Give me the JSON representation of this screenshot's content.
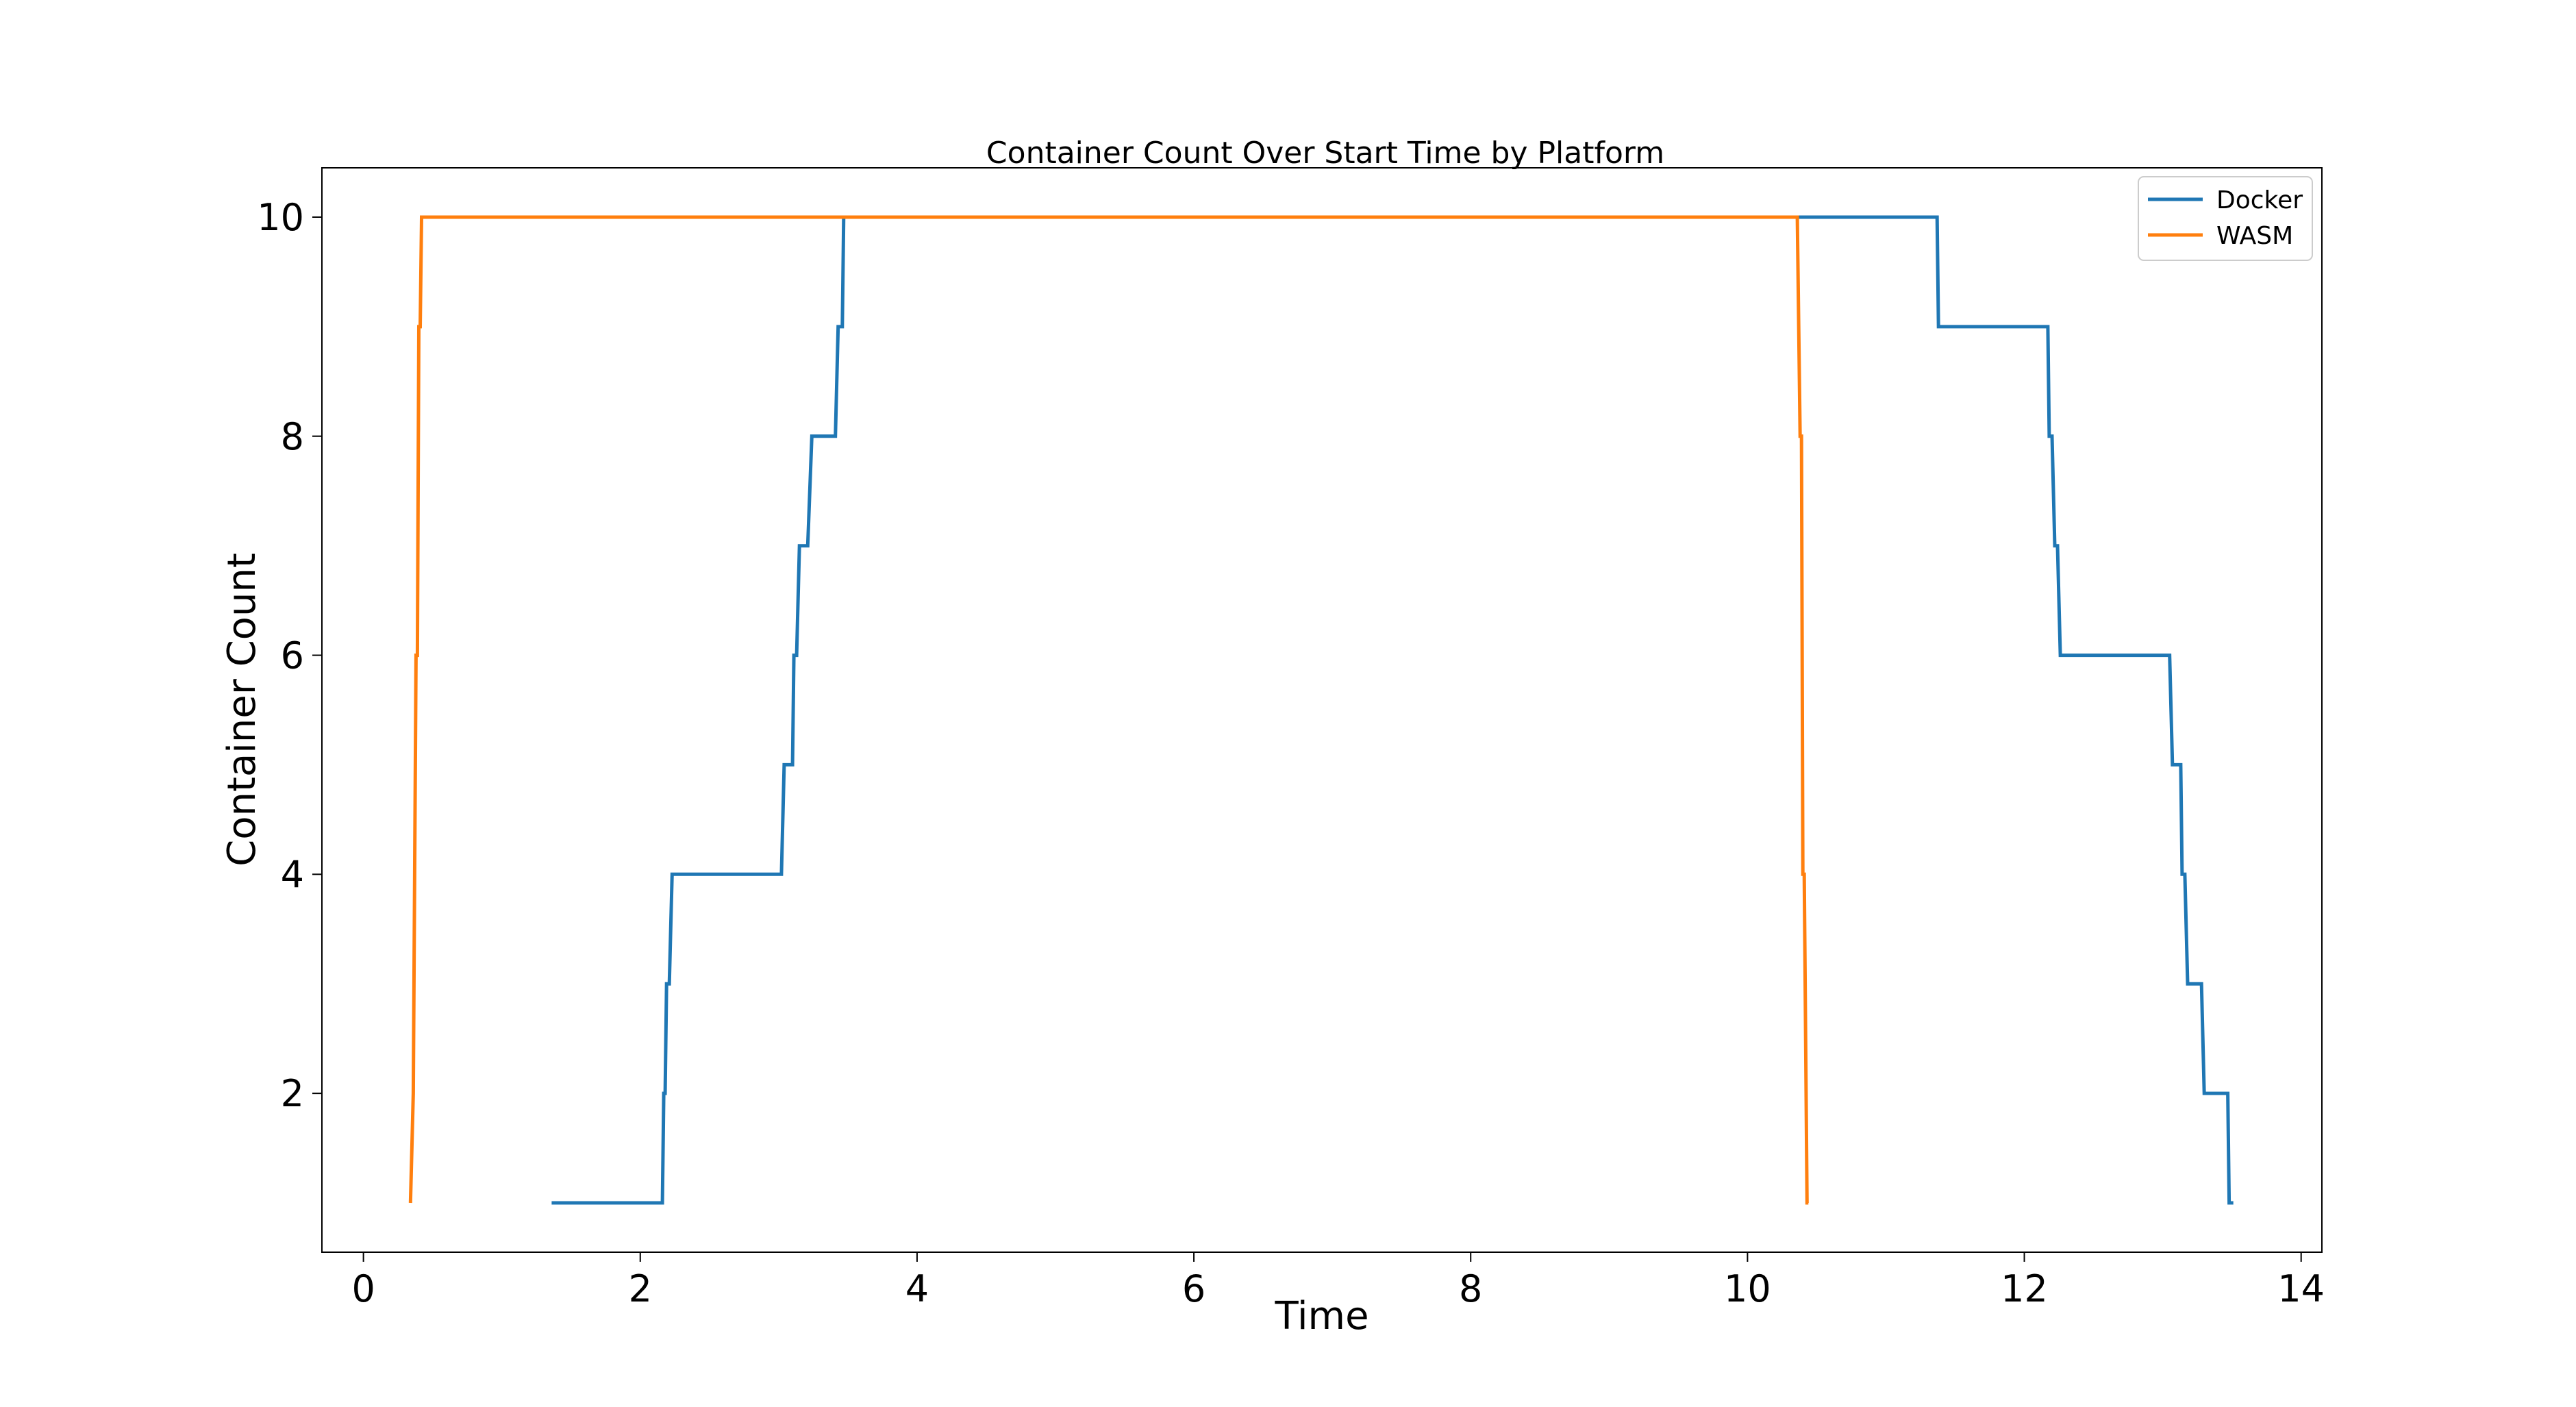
{
  "chart_data": {
    "type": "line",
    "title": "Container Count Over Start Time by Platform",
    "xlabel": "Time",
    "ylabel": "Container Count",
    "xlim": [
      -0.3,
      14.15
    ],
    "ylim": [
      0.55,
      10.45
    ],
    "xticks": [
      0,
      2,
      4,
      6,
      8,
      10,
      12,
      14
    ],
    "yticks": [
      2,
      4,
      6,
      8,
      10
    ],
    "xtick_labels": [
      "0",
      "2",
      "4",
      "6",
      "8",
      "10",
      "12",
      "14"
    ],
    "ytick_labels": [
      "2",
      "4",
      "6",
      "8",
      "10"
    ],
    "grid": false,
    "legend_position": "top-right",
    "series": [
      {
        "name": "Docker",
        "color": "#1f77b4",
        "points": [
          [
            1.36,
            1
          ],
          [
            2.16,
            1
          ],
          [
            2.17,
            2
          ],
          [
            2.18,
            2
          ],
          [
            2.19,
            3
          ],
          [
            2.21,
            3
          ],
          [
            2.23,
            4
          ],
          [
            3.02,
            4
          ],
          [
            3.04,
            5
          ],
          [
            3.1,
            5
          ],
          [
            3.11,
            6
          ],
          [
            3.13,
            6
          ],
          [
            3.15,
            7
          ],
          [
            3.21,
            7
          ],
          [
            3.24,
            8
          ],
          [
            3.41,
            8
          ],
          [
            3.43,
            9
          ],
          [
            3.46,
            9
          ],
          [
            3.47,
            10
          ],
          [
            11.37,
            10
          ],
          [
            11.38,
            9
          ],
          [
            12.17,
            9
          ],
          [
            12.18,
            8
          ],
          [
            12.2,
            8
          ],
          [
            12.22,
            7
          ],
          [
            12.24,
            7
          ],
          [
            12.26,
            6
          ],
          [
            13.05,
            6
          ],
          [
            13.07,
            5
          ],
          [
            13.13,
            5
          ],
          [
            13.14,
            4
          ],
          [
            13.16,
            4
          ],
          [
            13.18,
            3
          ],
          [
            13.28,
            3
          ],
          [
            13.3,
            2
          ],
          [
            13.47,
            2
          ],
          [
            13.48,
            1
          ],
          [
            13.51,
            1
          ]
        ]
      },
      {
        "name": "WASM",
        "color": "#ff7f0e",
        "points": [
          [
            0.34,
            1
          ],
          [
            0.36,
            2
          ],
          [
            0.38,
            6
          ],
          [
            0.39,
            6
          ],
          [
            0.4,
            9
          ],
          [
            0.41,
            9
          ],
          [
            0.42,
            10
          ],
          [
            10.36,
            10
          ],
          [
            10.38,
            8
          ],
          [
            10.39,
            8
          ],
          [
            10.4,
            4
          ],
          [
            10.41,
            4
          ],
          [
            10.43,
            1
          ],
          [
            10.44,
            1
          ]
        ]
      }
    ]
  }
}
